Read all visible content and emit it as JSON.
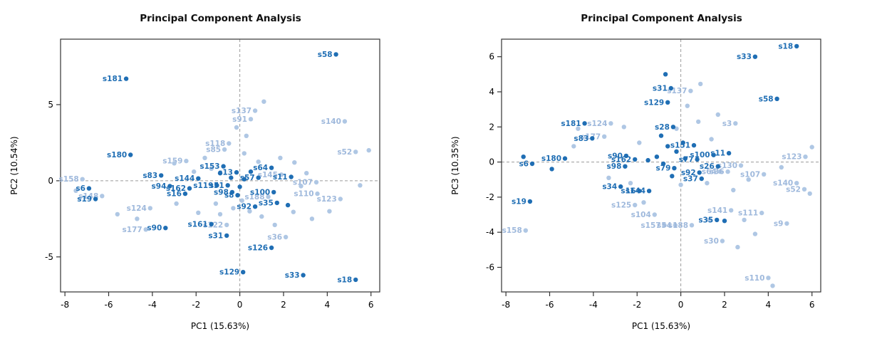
{
  "figure": {
    "background": "#ffffff"
  },
  "colors": {
    "dark_blue": "#1F6EB4",
    "light_blue": "#AFC7E4"
  },
  "chart_data": [
    {
      "type": "scatter",
      "title": "Principal Component Analysis",
      "xlabel": "PC1 (15.63%)",
      "ylabel": "PC2 (10.54%)",
      "xlim": [
        -8.2,
        6.4
      ],
      "ylim": [
        -7.3,
        9.3
      ],
      "xticks": [
        -8,
        -6,
        -4,
        -2,
        0,
        2,
        4,
        6
      ],
      "yticks": [
        -5,
        0,
        5
      ],
      "reference_lines": {
        "x": 0,
        "y": 0,
        "style": "dashed"
      },
      "grid": false,
      "legend": "none",
      "point_format": [
        "x",
        "y",
        "label"
      ],
      "series": [
        {
          "name": "group-light",
          "color": "#AFC7E4",
          "label_color": "#9FB9DC",
          "points": [
            [
              0.7,
              4.6,
              "s137"
            ],
            [
              0.5,
              4.05,
              "s91"
            ],
            [
              4.8,
              3.9,
              "s140"
            ],
            [
              5.3,
              1.9,
              "s52"
            ],
            [
              -0.5,
              2.45,
              "s118"
            ],
            [
              -0.7,
              2.05,
              "s85"
            ],
            [
              -2.45,
              1.3,
              "s159"
            ],
            [
              -7.2,
              0.1,
              "s158"
            ],
            [
              -6.3,
              -1.0,
              "s148"
            ],
            [
              -4.1,
              -1.8,
              "s124"
            ],
            [
              -4.3,
              -3.2,
              "s177"
            ],
            [
              -0.6,
              -2.9,
              "s122"
            ],
            [
              2.1,
              -3.7,
              "s36"
            ],
            [
              3.5,
              -0.1,
              "s107"
            ],
            [
              3.55,
              -0.85,
              "s110"
            ],
            [
              4.6,
              -1.2,
              "s123"
            ],
            [
              1.3,
              -1.05,
              "s188"
            ],
            [
              1.9,
              0.4,
              "s145"
            ],
            [
              1.1,
              5.2
            ],
            [
              -0.15,
              3.5
            ],
            [
              0.3,
              2.95
            ],
            [
              5.9,
              2.0
            ],
            [
              -3.0,
              1.15
            ],
            [
              -1.6,
              1.5
            ],
            [
              1.85,
              1.5
            ],
            [
              2.5,
              1.2
            ],
            [
              3.05,
              0.5
            ],
            [
              2.8,
              -0.35
            ],
            [
              4.1,
              -2.0
            ],
            [
              3.3,
              -2.5
            ],
            [
              2.45,
              -2.05
            ],
            [
              1.0,
              -2.35
            ],
            [
              0.45,
              -2.0
            ],
            [
              -0.3,
              -1.8
            ],
            [
              -1.1,
              -1.5
            ],
            [
              -1.9,
              -2.1
            ],
            [
              -2.9,
              -1.5
            ],
            [
              -7.5,
              -0.65
            ],
            [
              -5.6,
              -2.2
            ],
            [
              -4.7,
              -2.5
            ],
            [
              0.2,
              1.8
            ],
            [
              0.85,
              1.25
            ],
            [
              -1.3,
              0.8
            ],
            [
              5.5,
              -0.3
            ],
            [
              1.6,
              -2.9
            ],
            [
              -0.9,
              -2.2
            ],
            [
              -2.1,
              0.6
            ],
            [
              0.1,
              -1.3
            ]
          ]
        },
        {
          "name": "group-dark",
          "color": "#1F6EB4",
          "label_color": "#1F6EB4",
          "points": [
            [
              4.4,
              8.3,
              "s58"
            ],
            [
              -5.2,
              6.7,
              "s181"
            ],
            [
              -5.0,
              1.7,
              "s180"
            ],
            [
              -3.6,
              0.35,
              "s83"
            ],
            [
              -3.2,
              -0.35,
              "s94"
            ],
            [
              -6.9,
              -0.5,
              "s6"
            ],
            [
              -6.6,
              -1.2,
              "s19"
            ],
            [
              -1.9,
              0.15,
              "s144"
            ],
            [
              -2.3,
              -0.5,
              "s162"
            ],
            [
              -2.5,
              -0.85,
              "s16"
            ],
            [
              -3.4,
              -3.1,
              "s90"
            ],
            [
              -1.3,
              -2.85,
              "s161"
            ],
            [
              -0.6,
              -3.6,
              "s31"
            ],
            [
              0.15,
              -6.0,
              "s129"
            ],
            [
              1.45,
              -4.4,
              "s126"
            ],
            [
              2.9,
              -6.2,
              "s33"
            ],
            [
              5.3,
              -6.5,
              "s18"
            ],
            [
              0.7,
              -1.7,
              "s92"
            ],
            [
              1.7,
              -1.45,
              "s35"
            ],
            [
              1.55,
              -0.75,
              "s100"
            ],
            [
              2.35,
              0.25,
              "s11"
            ],
            [
              1.45,
              0.85,
              "s64"
            ],
            [
              -0.75,
              0.95,
              "s153"
            ],
            [
              -1.05,
              -0.3,
              "s119"
            ],
            [
              -0.55,
              -0.3,
              "s51"
            ],
            [
              0.85,
              0.2,
              "s57"
            ],
            [
              -0.15,
              0.55,
              "s13"
            ],
            [
              -0.35,
              -0.75,
              "s98"
            ],
            [
              -0.1,
              -0.95,
              "s8"
            ],
            [
              -0.4,
              0.2
            ],
            [
              0.2,
              0.1
            ],
            [
              0.5,
              0.6
            ],
            [
              -0.9,
              0.5
            ],
            [
              0.0,
              -0.4
            ],
            [
              2.2,
              -1.6
            ]
          ]
        }
      ]
    },
    {
      "type": "scatter",
      "title": "Principal Component Analysis",
      "xlabel": "PC1 (15.63%)",
      "ylabel": "PC3 (10.35%)",
      "xlim": [
        -8.2,
        6.4
      ],
      "ylim": [
        -7.4,
        7.0
      ],
      "xticks": [
        -8,
        -6,
        -4,
        -2,
        0,
        2,
        4,
        6
      ],
      "yticks": [
        -6,
        -4,
        -2,
        0,
        2,
        4,
        6
      ],
      "reference_lines": {
        "x": 0,
        "y": 0,
        "style": "dashed"
      },
      "grid": false,
      "legend": "none",
      "point_format": [
        "x",
        "y",
        "label"
      ],
      "series": [
        {
          "name": "group-light",
          "color": "#AFC7E4",
          "label_color": "#9FB9DC",
          "points": [
            [
              0.45,
              4.05,
              "s137"
            ],
            [
              -3.2,
              2.2,
              "s124"
            ],
            [
              -3.5,
              1.45,
              "s177"
            ],
            [
              2.5,
              2.2,
              "s3"
            ],
            [
              5.7,
              0.3,
              "s123"
            ],
            [
              3.8,
              -0.7,
              "s107"
            ],
            [
              2.75,
              -0.2,
              "s130"
            ],
            [
              5.3,
              -1.2,
              "s140"
            ],
            [
              5.65,
              -1.55,
              "s52"
            ],
            [
              3.7,
              -2.9,
              "s111"
            ],
            [
              4.85,
              -3.5,
              "s9"
            ],
            [
              2.3,
              -2.75,
              "s141"
            ],
            [
              -1.2,
              -3.0,
              "s104"
            ],
            [
              -2.1,
              -2.45,
              "s125"
            ],
            [
              -0.75,
              -3.6,
              "s157"
            ],
            [
              -0.25,
              -3.6,
              "s54"
            ],
            [
              0.5,
              -3.6,
              "s188"
            ],
            [
              -7.1,
              -3.9,
              "s158"
            ],
            [
              1.9,
              -4.5,
              "s30"
            ],
            [
              4.0,
              -6.6,
              "s110"
            ],
            [
              1.8,
              -0.55,
              "s64"
            ],
            [
              2.15,
              -0.55,
              "s36"
            ],
            [
              0.9,
              4.45
            ],
            [
              -4.7,
              1.9
            ],
            [
              -2.6,
              2.0
            ],
            [
              0.3,
              3.2
            ],
            [
              1.7,
              2.7
            ],
            [
              -0.2,
              1.9
            ],
            [
              0.8,
              2.3
            ],
            [
              1.4,
              1.3
            ],
            [
              -1.9,
              1.1
            ],
            [
              -4.9,
              0.9
            ],
            [
              -3.3,
              -0.9
            ],
            [
              -1.7,
              -2.3
            ],
            [
              0.0,
              -1.3
            ],
            [
              1.2,
              -1.2
            ],
            [
              2.4,
              -1.6
            ],
            [
              3.1,
              -1.0
            ],
            [
              4.6,
              -0.3
            ],
            [
              5.9,
              -1.8
            ],
            [
              3.4,
              -4.1
            ],
            [
              2.6,
              -4.85
            ],
            [
              1.3,
              -3.3
            ],
            [
              4.2,
              -7.05
            ],
            [
              6.0,
              0.85
            ],
            [
              -2.3,
              -1.2
            ],
            [
              2.9,
              -3.3
            ]
          ]
        },
        {
          "name": "group-dark",
          "color": "#1F6EB4",
          "label_color": "#1F6EB4",
          "points": [
            [
              5.3,
              6.6,
              "s18"
            ],
            [
              3.4,
              6.0,
              "s33"
            ],
            [
              4.4,
              3.6,
              "s58"
            ],
            [
              -0.45,
              4.2,
              "s31"
            ],
            [
              -0.6,
              3.4,
              "s129"
            ],
            [
              -4.4,
              2.2,
              "s181"
            ],
            [
              -4.05,
              1.35,
              "s83"
            ],
            [
              -5.3,
              0.2,
              "s180"
            ],
            [
              -6.8,
              -0.1,
              "s6"
            ],
            [
              -6.9,
              -2.25,
              "s19"
            ],
            [
              -2.5,
              0.35,
              "s90"
            ],
            [
              -2.55,
              -0.25,
              "s98"
            ],
            [
              -2.1,
              0.15,
              "s162"
            ],
            [
              -2.75,
              -1.4,
              "s34"
            ],
            [
              -1.9,
              -1.65,
              "s16"
            ],
            [
              -1.45,
              -1.65,
              "s144"
            ],
            [
              -0.35,
              2.0,
              "s28"
            ],
            [
              0.6,
              0.95,
              "s151"
            ],
            [
              0.75,
              0.15,
              "s77"
            ],
            [
              1.5,
              0.4,
              "s100"
            ],
            [
              2.2,
              0.5,
              "s11"
            ],
            [
              1.7,
              -0.25,
              "s26"
            ],
            [
              0.85,
              -0.6,
              "s92"
            ],
            [
              0.95,
              -0.95,
              "s37"
            ],
            [
              -0.3,
              -0.35,
              "s79"
            ],
            [
              1.65,
              -3.3,
              "s35"
            ],
            [
              -0.7,
              5.0
            ],
            [
              -7.2,
              0.3
            ],
            [
              -5.9,
              -0.4
            ],
            [
              -0.9,
              1.5
            ],
            [
              -0.6,
              0.9
            ],
            [
              -1.1,
              0.3
            ],
            [
              -0.8,
              -0.1
            ],
            [
              -0.2,
              0.6
            ],
            [
              0.2,
              0.2
            ],
            [
              -1.5,
              0.1
            ],
            [
              2.0,
              -3.35
            ],
            [
              0.1,
              1.1
            ],
            [
              -0.4,
              -0.8
            ]
          ]
        }
      ]
    }
  ]
}
